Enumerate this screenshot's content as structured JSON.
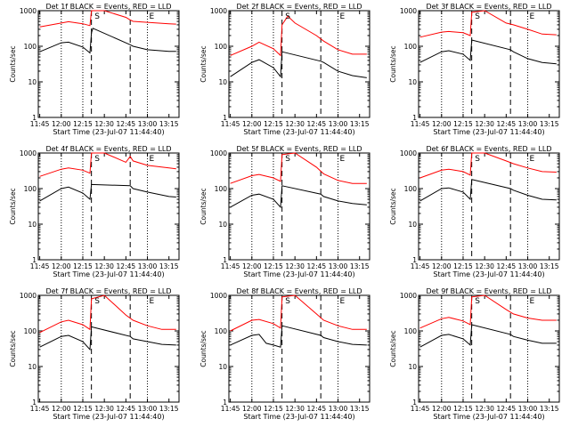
{
  "figure": {
    "background": "#ffffff",
    "axis_color": "#000000"
  },
  "chart_data": [
    {
      "type": "line",
      "title": "Det 1f BLACK = Events, RED = LLD",
      "xlabel": "Start Time (23-Jul-07 11:44:40)",
      "ylabel": "Counts/sec",
      "x_ticks": [
        "11:45",
        "12:00",
        "12:15",
        "12:30",
        "12:45",
        "13:00",
        "13:15"
      ],
      "y_ticks": [
        "1",
        "10",
        "100",
        "1000"
      ],
      "y_scale": "log",
      "ylim": [
        1,
        1000
      ],
      "markers": [
        {
          "label": "S",
          "time": "12:25"
        },
        {
          "label": "E",
          "time": "13:03"
        }
      ],
      "dashed_lines": [
        "12:21",
        "12:48"
      ],
      "dotted_lines": [
        "12:00",
        "12:15",
        "13:00"
      ],
      "series": [
        {
          "color": "#ff0000",
          "x": [
            "11:45",
            "12:00",
            "12:05",
            "12:15",
            "12:20",
            "12:21",
            "12:22",
            "12:30",
            "12:45",
            "12:48",
            "12:50",
            "13:00",
            "13:15",
            "13:20"
          ],
          "y": [
            350,
            450,
            490,
            430,
            380,
            1000,
            1200,
            1300,
            650,
            550,
            500,
            470,
            430,
            420
          ]
        },
        {
          "color": "#000000",
          "x": [
            "11:45",
            "12:00",
            "12:05",
            "12:15",
            "12:20",
            "12:21",
            "12:22",
            "12:48",
            "12:50",
            "13:00",
            "13:15",
            "13:20"
          ],
          "y": [
            70,
            125,
            130,
            95,
            65,
            240,
            320,
            110,
            100,
            80,
            72,
            72
          ]
        }
      ]
    },
    {
      "type": "line",
      "title": "Det 2f BLACK = Events, RED = LLD",
      "xlabel": "Start Time (23-Jul-07 11:44:40)",
      "ylabel": "Counts/sec",
      "x_ticks": [
        "11:45",
        "12:00",
        "12:15",
        "12:30",
        "12:45",
        "13:00",
        "13:15"
      ],
      "y_ticks": [
        "1",
        "10",
        "100",
        "1000"
      ],
      "y_scale": "log",
      "ylim": [
        1,
        1000
      ],
      "markers": [
        {
          "label": "S",
          "time": "12:25"
        },
        {
          "label": "E",
          "time": "13:03"
        }
      ],
      "dashed_lines": [
        "12:21",
        "12:48"
      ],
      "dotted_lines": [
        "12:00",
        "12:15",
        "13:00"
      ],
      "series": [
        {
          "color": "#ff0000",
          "x": [
            "11:45",
            "12:00",
            "12:05",
            "12:15",
            "12:20",
            "12:21",
            "12:25",
            "12:30",
            "12:45",
            "12:50",
            "13:00",
            "13:10",
            "13:20"
          ],
          "y": [
            55,
            100,
            130,
            85,
            55,
            400,
            700,
            450,
            200,
            140,
            80,
            60,
            60
          ]
        },
        {
          "color": "#000000",
          "x": [
            "11:45",
            "12:00",
            "12:05",
            "12:15",
            "12:20",
            "12:21",
            "12:48",
            "12:50",
            "13:00",
            "13:10",
            "13:20"
          ],
          "y": [
            14,
            35,
            42,
            25,
            14,
            70,
            38,
            35,
            20,
            15,
            13
          ]
        }
      ]
    },
    {
      "type": "line",
      "title": "Det 3f BLACK = Events, RED = LLD",
      "xlabel": "Start Time (23-Jul-07 11:44:40)",
      "ylabel": "Counts/sec",
      "x_ticks": [
        "11:45",
        "12:00",
        "12:15",
        "12:30",
        "12:45",
        "13:00",
        "13:15"
      ],
      "y_ticks": [
        "1",
        "10",
        "100",
        "1000"
      ],
      "y_scale": "log",
      "ylim": [
        1,
        1000
      ],
      "markers": [
        {
          "label": "S",
          "time": "12:25"
        },
        {
          "label": "E",
          "time": "13:03"
        }
      ],
      "dashed_lines": [
        "12:21",
        "12:48"
      ],
      "dotted_lines": [
        "12:00",
        "12:15",
        "13:00"
      ],
      "series": [
        {
          "color": "#ff0000",
          "x": [
            "11:45",
            "12:00",
            "12:05",
            "12:15",
            "12:20",
            "12:21",
            "12:30",
            "12:45",
            "12:50",
            "13:00",
            "13:10",
            "13:20"
          ],
          "y": [
            180,
            250,
            260,
            240,
            200,
            900,
            1000,
            450,
            400,
            300,
            220,
            210
          ]
        },
        {
          "color": "#000000",
          "x": [
            "11:45",
            "12:00",
            "12:05",
            "12:15",
            "12:20",
            "12:21",
            "12:48",
            "12:50",
            "13:00",
            "13:10",
            "13:20"
          ],
          "y": [
            35,
            70,
            75,
            60,
            40,
            150,
            80,
            70,
            45,
            35,
            32
          ]
        }
      ]
    },
    {
      "type": "line",
      "title": "Det 4f BLACK = Events, RED = LLD",
      "xlabel": "Start Time (23-Jul-07 11:44:40)",
      "ylabel": "Counts/sec",
      "x_ticks": [
        "11:45",
        "12:00",
        "12:15",
        "12:30",
        "12:45",
        "13:00",
        "13:15"
      ],
      "y_ticks": [
        "1",
        "10",
        "100",
        "1000"
      ],
      "y_scale": "log",
      "ylim": [
        1,
        1000
      ],
      "markers": [
        {
          "label": "S",
          "time": "12:25"
        },
        {
          "label": "E",
          "time": "13:03"
        }
      ],
      "dashed_lines": [
        "12:21",
        "12:48"
      ],
      "dotted_lines": [
        "12:00",
        "12:15",
        "13:00"
      ],
      "series": [
        {
          "color": "#ff0000",
          "x": [
            "11:45",
            "12:00",
            "12:05",
            "12:15",
            "12:20",
            "12:21",
            "12:30",
            "12:45",
            "12:48",
            "12:50",
            "13:00",
            "13:15",
            "13:20"
          ],
          "y": [
            220,
            350,
            380,
            330,
            270,
            1000,
            1200,
            550,
            800,
            600,
            450,
            380,
            360
          ]
        },
        {
          "color": "#000000",
          "x": [
            "11:45",
            "12:00",
            "12:05",
            "12:15",
            "12:20",
            "12:21",
            "12:48",
            "12:50",
            "13:00",
            "13:15",
            "13:20"
          ],
          "y": [
            45,
            100,
            110,
            75,
            50,
            130,
            120,
            100,
            80,
            60,
            58
          ]
        }
      ]
    },
    {
      "type": "line",
      "title": "Det 5f BLACK = Events, RED = LLD",
      "xlabel": "Start Time (23-Jul-07 11:44:40)",
      "ylabel": "Counts/sec",
      "x_ticks": [
        "11:45",
        "12:00",
        "12:15",
        "12:30",
        "12:45",
        "13:00",
        "13:15"
      ],
      "y_ticks": [
        "1",
        "10",
        "100",
        "1000"
      ],
      "y_scale": "log",
      "ylim": [
        1,
        1000
      ],
      "markers": [
        {
          "label": "S",
          "time": "12:25"
        },
        {
          "label": "E",
          "time": "13:03"
        }
      ],
      "dashed_lines": [
        "12:21",
        "12:48"
      ],
      "dotted_lines": [
        "12:00",
        "12:15",
        "13:00"
      ],
      "series": [
        {
          "color": "#ff0000",
          "x": [
            "11:45",
            "12:00",
            "12:05",
            "12:15",
            "12:20",
            "12:21",
            "12:30",
            "12:45",
            "12:50",
            "13:00",
            "13:10",
            "13:20"
          ],
          "y": [
            140,
            230,
            250,
            200,
            160,
            900,
            1100,
            400,
            260,
            170,
            140,
            140
          ]
        },
        {
          "color": "#000000",
          "x": [
            "11:45",
            "12:00",
            "12:05",
            "12:15",
            "12:20",
            "12:21",
            "12:48",
            "12:50",
            "13:00",
            "13:10",
            "13:20"
          ],
          "y": [
            30,
            65,
            70,
            50,
            30,
            120,
            70,
            60,
            45,
            38,
            35
          ]
        }
      ]
    },
    {
      "type": "line",
      "title": "Det 6f BLACK = Events, RED = LLD",
      "xlabel": "Start Time (23-Jul-07 11:44:40)",
      "ylabel": "Counts/sec",
      "x_ticks": [
        "11:45",
        "12:00",
        "12:15",
        "12:30",
        "12:45",
        "13:00",
        "13:15"
      ],
      "y_ticks": [
        "1",
        "10",
        "100",
        "1000"
      ],
      "y_scale": "log",
      "ylim": [
        1,
        1000
      ],
      "markers": [
        {
          "label": "S",
          "time": "12:25"
        },
        {
          "label": "E",
          "time": "13:03"
        }
      ],
      "dashed_lines": [
        "12:21",
        "12:48"
      ],
      "dotted_lines": [
        "12:00",
        "12:15",
        "13:00"
      ],
      "series": [
        {
          "color": "#ff0000",
          "x": [
            "11:45",
            "12:00",
            "12:05",
            "12:15",
            "12:20",
            "12:21",
            "12:30",
            "12:45",
            "12:50",
            "13:00",
            "13:10",
            "13:20"
          ],
          "y": [
            200,
            330,
            350,
            300,
            240,
            1000,
            1100,
            600,
            500,
            380,
            300,
            290
          ]
        },
        {
          "color": "#000000",
          "x": [
            "11:45",
            "12:00",
            "12:05",
            "12:15",
            "12:20",
            "12:21",
            "12:48",
            "12:50",
            "13:00",
            "13:10",
            "13:20"
          ],
          "y": [
            45,
            100,
            105,
            80,
            50,
            180,
            100,
            90,
            65,
            50,
            48
          ]
        }
      ]
    },
    {
      "type": "line",
      "title": "Det 7f BLACK = Events, RED = LLD",
      "xlabel": "Start Time (23-Jul-07 11:44:40)",
      "ylabel": "Counts/sec",
      "x_ticks": [
        "11:45",
        "12:00",
        "12:15",
        "12:30",
        "12:45",
        "13:00",
        "13:15"
      ],
      "y_ticks": [
        "1",
        "10",
        "100",
        "1000"
      ],
      "y_scale": "log",
      "ylim": [
        1,
        1000
      ],
      "markers": [
        {
          "label": "S",
          "time": "12:25"
        },
        {
          "label": "E",
          "time": "13:03"
        }
      ],
      "dashed_lines": [
        "12:21",
        "12:48"
      ],
      "dotted_lines": [
        "12:00",
        "12:15",
        "13:00"
      ],
      "series": [
        {
          "color": "#ff0000",
          "x": [
            "11:45",
            "12:00",
            "12:05",
            "12:15",
            "12:20",
            "12:21",
            "12:30",
            "12:45",
            "12:50",
            "13:00",
            "13:10",
            "13:20"
          ],
          "y": [
            90,
            180,
            200,
            150,
            110,
            800,
            1000,
            280,
            200,
            140,
            110,
            110
          ]
        },
        {
          "color": "#000000",
          "x": [
            "11:45",
            "12:00",
            "12:05",
            "12:15",
            "12:20",
            "12:21",
            "12:48",
            "12:50",
            "13:00",
            "13:10",
            "13:20"
          ],
          "y": [
            35,
            70,
            75,
            50,
            30,
            130,
            70,
            60,
            50,
            42,
            40
          ]
        }
      ]
    },
    {
      "type": "line",
      "title": "Det 8f BLACK = Events, RED = LLD",
      "xlabel": "Start Time (23-Jul-07 11:44:40)",
      "ylabel": "Counts/sec",
      "x_ticks": [
        "11:45",
        "12:00",
        "12:15",
        "12:30",
        "12:45",
        "13:00",
        "13:15"
      ],
      "y_ticks": [
        "1",
        "10",
        "100",
        "1000"
      ],
      "y_scale": "log",
      "ylim": [
        1,
        1000
      ],
      "markers": [
        {
          "label": "S",
          "time": "12:25"
        },
        {
          "label": "E",
          "time": "13:03"
        }
      ],
      "dashed_lines": [
        "12:21",
        "12:48"
      ],
      "dotted_lines": [
        "12:00",
        "12:15",
        "13:00"
      ],
      "series": [
        {
          "color": "#ff0000",
          "x": [
            "11:45",
            "12:00",
            "12:05",
            "12:15",
            "12:20",
            "12:21",
            "12:30",
            "12:45",
            "12:50",
            "13:00",
            "13:10",
            "13:20"
          ],
          "y": [
            100,
            200,
            210,
            160,
            120,
            900,
            1100,
            300,
            200,
            140,
            110,
            110
          ]
        },
        {
          "color": "#000000",
          "x": [
            "11:45",
            "12:00",
            "12:05",
            "12:10",
            "12:15",
            "12:20",
            "12:21",
            "12:48",
            "12:50",
            "13:00",
            "13:10",
            "13:20"
          ],
          "y": [
            40,
            75,
            80,
            45,
            40,
            35,
            140,
            75,
            65,
            50,
            42,
            40
          ]
        }
      ]
    },
    {
      "type": "line",
      "title": "Det 9f BLACK = Events, RED = LLD",
      "xlabel": "Start Time (23-Jul-07 11:44:40)",
      "ylabel": "Counts/sec",
      "x_ticks": [
        "11:45",
        "12:00",
        "12:15",
        "12:30",
        "12:45",
        "13:00",
        "13:15"
      ],
      "y_ticks": [
        "1",
        "10",
        "100",
        "1000"
      ],
      "y_scale": "log",
      "ylim": [
        1,
        1000
      ],
      "markers": [
        {
          "label": "S",
          "time": "12:25"
        },
        {
          "label": "E",
          "time": "13:03"
        }
      ],
      "dashed_lines": [
        "12:21",
        "12:48"
      ],
      "dotted_lines": [
        "12:00",
        "12:15",
        "13:00"
      ],
      "series": [
        {
          "color": "#ff0000",
          "x": [
            "11:45",
            "12:00",
            "12:05",
            "12:15",
            "12:20",
            "12:21",
            "12:30",
            "12:45",
            "12:50",
            "13:00",
            "13:10",
            "13:20"
          ],
          "y": [
            120,
            220,
            240,
            190,
            150,
            900,
            1100,
            400,
            300,
            230,
            200,
            200
          ]
        },
        {
          "color": "#000000",
          "x": [
            "11:45",
            "12:00",
            "12:05",
            "12:15",
            "12:20",
            "12:21",
            "12:48",
            "12:50",
            "13:00",
            "13:10",
            "13:20"
          ],
          "y": [
            35,
            75,
            80,
            60,
            40,
            150,
            80,
            70,
            55,
            45,
            45
          ]
        }
      ]
    }
  ]
}
